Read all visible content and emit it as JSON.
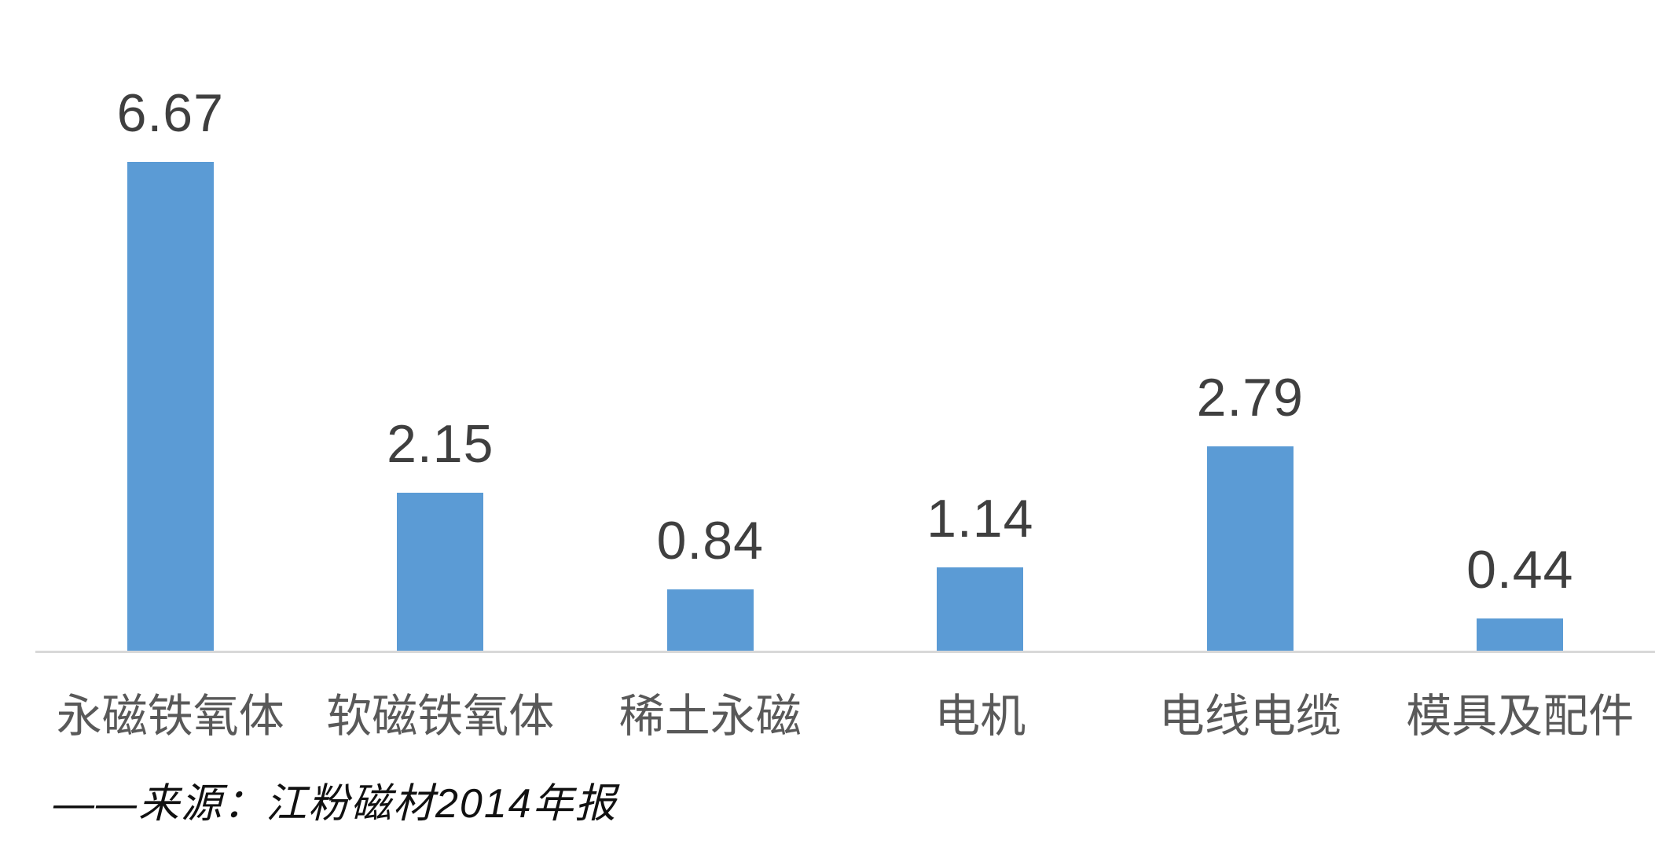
{
  "chart_data": {
    "type": "bar",
    "categories": [
      "永磁铁氧体",
      "软磁铁氧体",
      "稀土永磁",
      "电机",
      "电线电缆",
      "模具及配件"
    ],
    "values": [
      6.67,
      2.15,
      0.84,
      1.14,
      2.79,
      0.44
    ],
    "value_labels": [
      "6.67",
      "2.15",
      "0.84",
      "1.14",
      "2.79",
      "0.44"
    ],
    "title": "",
    "xlabel": "",
    "ylabel": "",
    "ylim": [
      0,
      7.2
    ],
    "grid": false,
    "legend": false,
    "bar_color": "#5b9bd5",
    "value_label_color": "#3f3f3f",
    "category_label_color": "#595959",
    "axis_line_color": "#d8d8d8",
    "source_note_color": "#111111"
  },
  "footer": {
    "source_note": "——来源：江粉磁材2014年报"
  }
}
